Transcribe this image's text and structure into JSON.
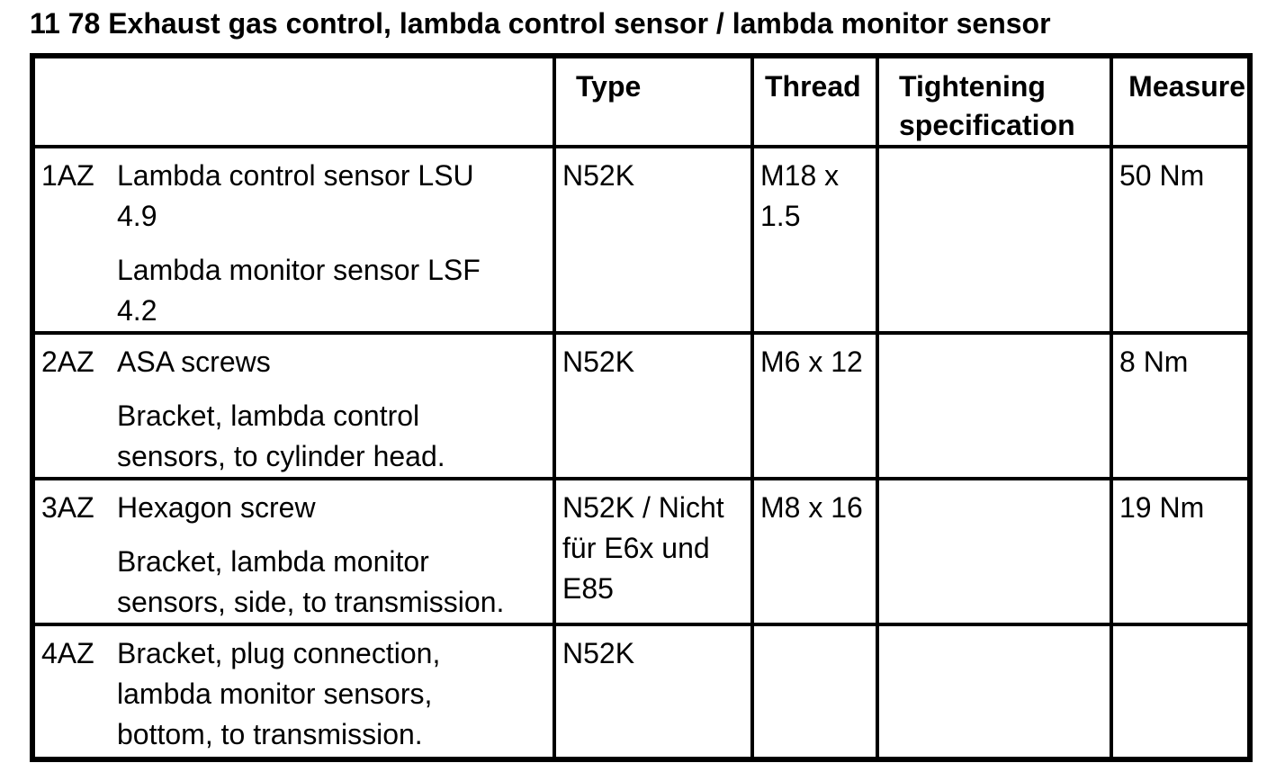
{
  "page": {
    "title": "11 78 Exhaust gas control, lambda control sensor / lambda monitor sensor"
  },
  "colors": {
    "text": "#000000",
    "background": "#ffffff",
    "table_border": "#000000"
  },
  "table": {
    "headers": {
      "item": "",
      "type": "Type",
      "thread": "Thread",
      "tightening": "Tightening specification",
      "measure": "Measure"
    },
    "rows": [
      {
        "label": "1AZ",
        "description": [
          "Lambda control sensor LSU 4.9",
          "Lambda monitor sensor LSF 4.2"
        ],
        "type": "N52K",
        "thread": "M18 x 1.5",
        "tightening": "",
        "measure": "50 Nm"
      },
      {
        "label": "2AZ",
        "description": [
          "ASA screws",
          "Bracket, lambda control sensors, to cylinder head."
        ],
        "type": "N52K",
        "thread": "M6 x 12",
        "tightening": "",
        "measure": "8 Nm"
      },
      {
        "label": "3AZ",
        "description": [
          "Hexagon screw",
          "Bracket, lambda monitor sensors, side, to transmission."
        ],
        "type": "N52K / Nicht für E6x und E85",
        "thread": "M8 x 16",
        "tightening": "",
        "measure": "19 Nm"
      },
      {
        "label": "4AZ",
        "description": [
          "Bracket, plug connection, lambda monitor sensors, bottom, to transmission."
        ],
        "type": "N52K",
        "thread": "",
        "tightening": "",
        "measure": ""
      }
    ]
  }
}
